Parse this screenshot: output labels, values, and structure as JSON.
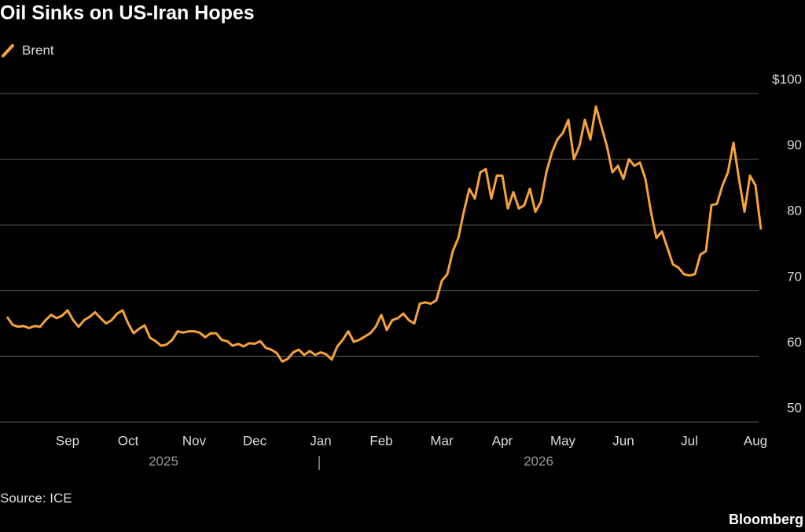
{
  "chart_data": {
    "type": "line",
    "title": "Oil Sinks on US-Iran Hopes",
    "source": "Source: ICE",
    "brand": "Bloomberg",
    "year_labels": [
      "2025",
      "2026"
    ],
    "categories": [
      null,
      null,
      null,
      null,
      null,
      null,
      null,
      null,
      null,
      null,
      null,
      "Sep",
      null,
      null,
      null,
      null,
      null,
      null,
      null,
      null,
      null,
      null,
      "Oct",
      null,
      null,
      null,
      null,
      null,
      null,
      null,
      null,
      null,
      null,
      null,
      "Nov",
      null,
      null,
      null,
      null,
      null,
      null,
      null,
      null,
      null,
      null,
      "Dec",
      null,
      null,
      null,
      null,
      null,
      null,
      null,
      null,
      null,
      null,
      null,
      "Jan",
      null,
      null,
      null,
      null,
      null,
      null,
      null,
      null,
      null,
      null,
      "Feb",
      null,
      null,
      null,
      null,
      null,
      null,
      null,
      null,
      null,
      null,
      "Mar",
      null,
      null,
      null,
      null,
      null,
      null,
      null,
      null,
      null,
      null,
      "Apr",
      null,
      null,
      null,
      null,
      null,
      null,
      null,
      null,
      null,
      null,
      "May",
      null,
      null,
      null,
      null,
      null,
      null,
      null,
      null,
      null,
      null,
      "Jun",
      null,
      null,
      null,
      null,
      null,
      null,
      null,
      null,
      null,
      null,
      null,
      "Jul",
      null,
      null,
      null,
      null,
      null,
      null,
      null,
      null,
      null,
      null,
      null,
      "Aug",
      null
    ],
    "series": [
      {
        "name": "Brent",
        "color": "#f7a23b",
        "values": [
          66,
          64.8,
          64.5,
          64.6,
          64.3,
          64.6,
          64.5,
          65.5,
          66.3,
          65.8,
          66.2,
          67,
          65.5,
          64.5,
          65.5,
          66,
          66.7,
          65.8,
          65,
          65.5,
          66.5,
          67,
          65,
          63.5,
          64.2,
          64.7,
          62.8,
          62.3,
          61.6,
          61.8,
          62.5,
          63.8,
          63.6,
          63.8,
          63.8,
          63.6,
          62.9,
          63.5,
          63.5,
          62.5,
          62.3,
          61.6,
          61.9,
          61.5,
          62,
          61.9,
          62.3,
          61.3,
          61,
          60.5,
          59.2,
          59.6,
          60.6,
          61,
          60.2,
          60.8,
          60.2,
          60.6,
          60.3,
          59.5,
          61.5,
          62.5,
          63.8,
          62.2,
          62.5,
          63,
          63.5,
          64.5,
          66.3,
          64,
          65.5,
          65.8,
          66.5,
          65.5,
          65,
          68,
          68.2,
          68,
          68.5,
          71.5,
          72.5,
          76,
          78,
          82,
          85.5,
          84,
          88,
          88.5,
          84,
          87.5,
          87.5,
          82.5,
          85,
          82.5,
          83,
          85.5,
          82,
          83.5,
          88,
          91,
          93,
          94,
          96,
          90,
          92,
          96,
          93,
          98,
          95,
          92,
          88,
          89,
          87,
          90,
          89,
          89.5,
          87,
          82,
          78,
          79,
          76.5,
          74,
          73.5,
          72.5,
          72.3,
          72.5,
          75.5,
          76,
          83,
          83.2,
          86,
          88,
          92.5,
          87,
          82,
          87.5,
          86,
          79.3
        ]
      }
    ],
    "ylim": [
      50,
      100
    ],
    "yticks": [
      50,
      60,
      70,
      80,
      90,
      {
        "value": 100,
        "label": "$100"
      }
    ],
    "grid": true
  }
}
